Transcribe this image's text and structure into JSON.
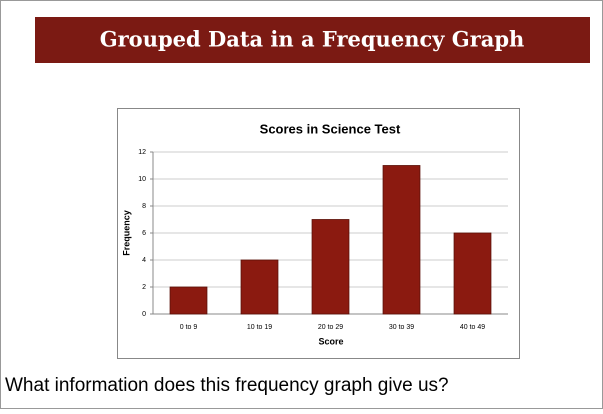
{
  "header": {
    "title": "Grouped Data in a Frequency Graph"
  },
  "chart_data": {
    "type": "bar",
    "title": "Scores in Science Test",
    "x_label": "Score",
    "y_label": "Frequency",
    "categories": [
      "0 to 9",
      "10 to 19",
      "20 to 29",
      "30 to 39",
      "40 to 49"
    ],
    "values": [
      2,
      4,
      7,
      11,
      6
    ],
    "color": "#8b1a10",
    "ylim": [
      0,
      12
    ],
    "yticks": [
      0,
      2,
      4,
      6,
      8,
      10,
      12
    ],
    "grid": true
  },
  "caption": "What information does this frequency graph give us?"
}
